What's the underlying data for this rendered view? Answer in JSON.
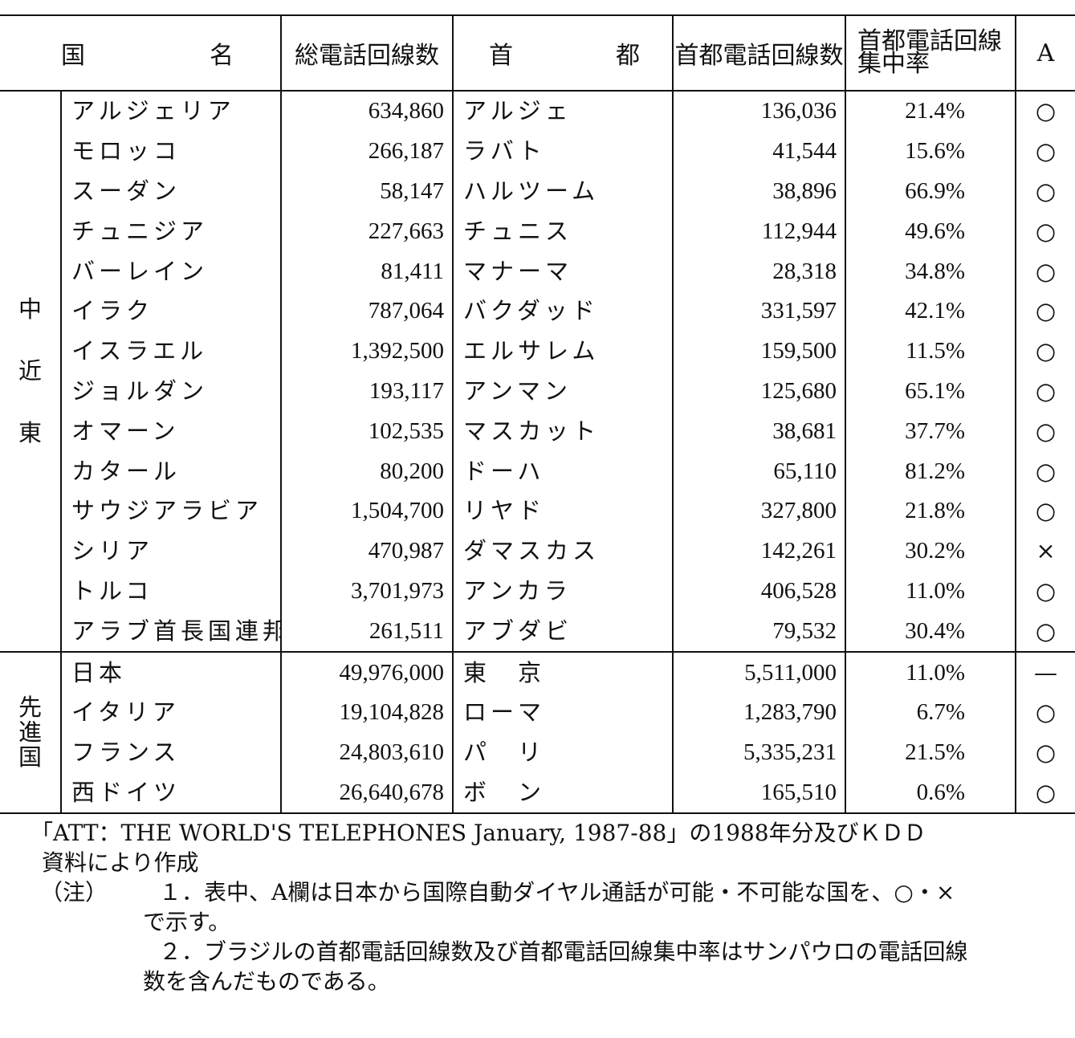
{
  "table": {
    "headers": {
      "country": [
        "国",
        "名"
      ],
      "total_lines": "総電話回線数",
      "capital": [
        "首",
        "都"
      ],
      "capital_lines": "首都電話回線数",
      "concentration": [
        "首都電話回線",
        "集中率"
      ],
      "a": "A"
    },
    "groups": [
      {
        "label": [
          "中",
          "近",
          "東"
        ],
        "rows": [
          {
            "country": "アルジェリア",
            "total": "634,860",
            "capital": "アルジェ",
            "capital_lines": "136,036",
            "rate": "21.4%",
            "a": "○"
          },
          {
            "country": "モロッコ",
            "total": "266,187",
            "capital": "ラバト",
            "capital_lines": "41,544",
            "rate": "15.6%",
            "a": "○"
          },
          {
            "country": "スーダン",
            "total": "58,147",
            "capital": "ハルツーム",
            "capital_lines": "38,896",
            "rate": "66.9%",
            "a": "○"
          },
          {
            "country": "チュニジア",
            "total": "227,663",
            "capital": "チュニス",
            "capital_lines": "112,944",
            "rate": "49.6%",
            "a": "○"
          },
          {
            "country": "バーレイン",
            "total": "81,411",
            "capital": "マナーマ",
            "capital_lines": "28,318",
            "rate": "34.8%",
            "a": "○"
          },
          {
            "country": "イラク",
            "total": "787,064",
            "capital": "バクダッド",
            "capital_lines": "331,597",
            "rate": "42.1%",
            "a": "○"
          },
          {
            "country": "イスラエル",
            "total": "1,392,500",
            "capital": "エルサレム",
            "capital_lines": "159,500",
            "rate": "11.5%",
            "a": "○"
          },
          {
            "country": "ジョルダン",
            "total": "193,117",
            "capital": "アンマン",
            "capital_lines": "125,680",
            "rate": "65.1%",
            "a": "○"
          },
          {
            "country": "オマーン",
            "total": "102,535",
            "capital": "マスカット",
            "capital_lines": "38,681",
            "rate": "37.7%",
            "a": "○"
          },
          {
            "country": "カタール",
            "total": "80,200",
            "capital": "ドーハ",
            "capital_lines": "65,110",
            "rate": "81.2%",
            "a": "○"
          },
          {
            "country": "サウジアラビア",
            "total": "1,504,700",
            "capital": "リヤド",
            "capital_lines": "327,800",
            "rate": "21.8%",
            "a": "○"
          },
          {
            "country": "シリア",
            "total": "470,987",
            "capital": "ダマスカス",
            "capital_lines": "142,261",
            "rate": "30.2%",
            "a": "×"
          },
          {
            "country": "トルコ",
            "total": "3,701,973",
            "capital": "アンカラ",
            "capital_lines": "406,528",
            "rate": "11.0%",
            "a": "○"
          },
          {
            "country": "アラブ首長国連邦",
            "total": "261,511",
            "capital": "アブダビ",
            "capital_lines": "79,532",
            "rate": "30.4%",
            "a": "○"
          }
        ]
      },
      {
        "label": [
          "先",
          "進",
          "国"
        ],
        "rows": [
          {
            "country": "日本",
            "total": "49,976,000",
            "capital": "東　京",
            "capital_lines": "5,511,000",
            "rate": "11.0%",
            "a": "—"
          },
          {
            "country": "イタリア",
            "total": "19,104,828",
            "capital": "ローマ",
            "capital_lines": "1,283,790",
            "rate": "6.7%",
            "a": "○"
          },
          {
            "country": "フランス",
            "total": "24,803,610",
            "capital": "パ　リ",
            "capital_lines": "5,335,231",
            "rate": "21.5%",
            "a": "○"
          },
          {
            "country": "西ドイツ",
            "total": "26,640,678",
            "capital": "ボ　ン",
            "capital_lines": "165,510",
            "rate": "0.6%",
            "a": "○"
          }
        ]
      }
    ]
  },
  "notes": {
    "source_line1": "「ATT：THE WORLD'S TELEPHONES January, 1987-88」の1988年分及びＫＤＤ",
    "source_line2": "資料により作成",
    "note_label": "（注）",
    "note1_line1": "１．表中、A欄は日本から国際自動ダイヤル通話が可能・不可能な国を、○・×",
    "note1_line2": "で示す。",
    "note2_line1": "２．ブラジルの首都電話回線数及び首都電話回線集中率はサンパウロの電話回線",
    "note2_line2": "数を含んだものである。"
  }
}
